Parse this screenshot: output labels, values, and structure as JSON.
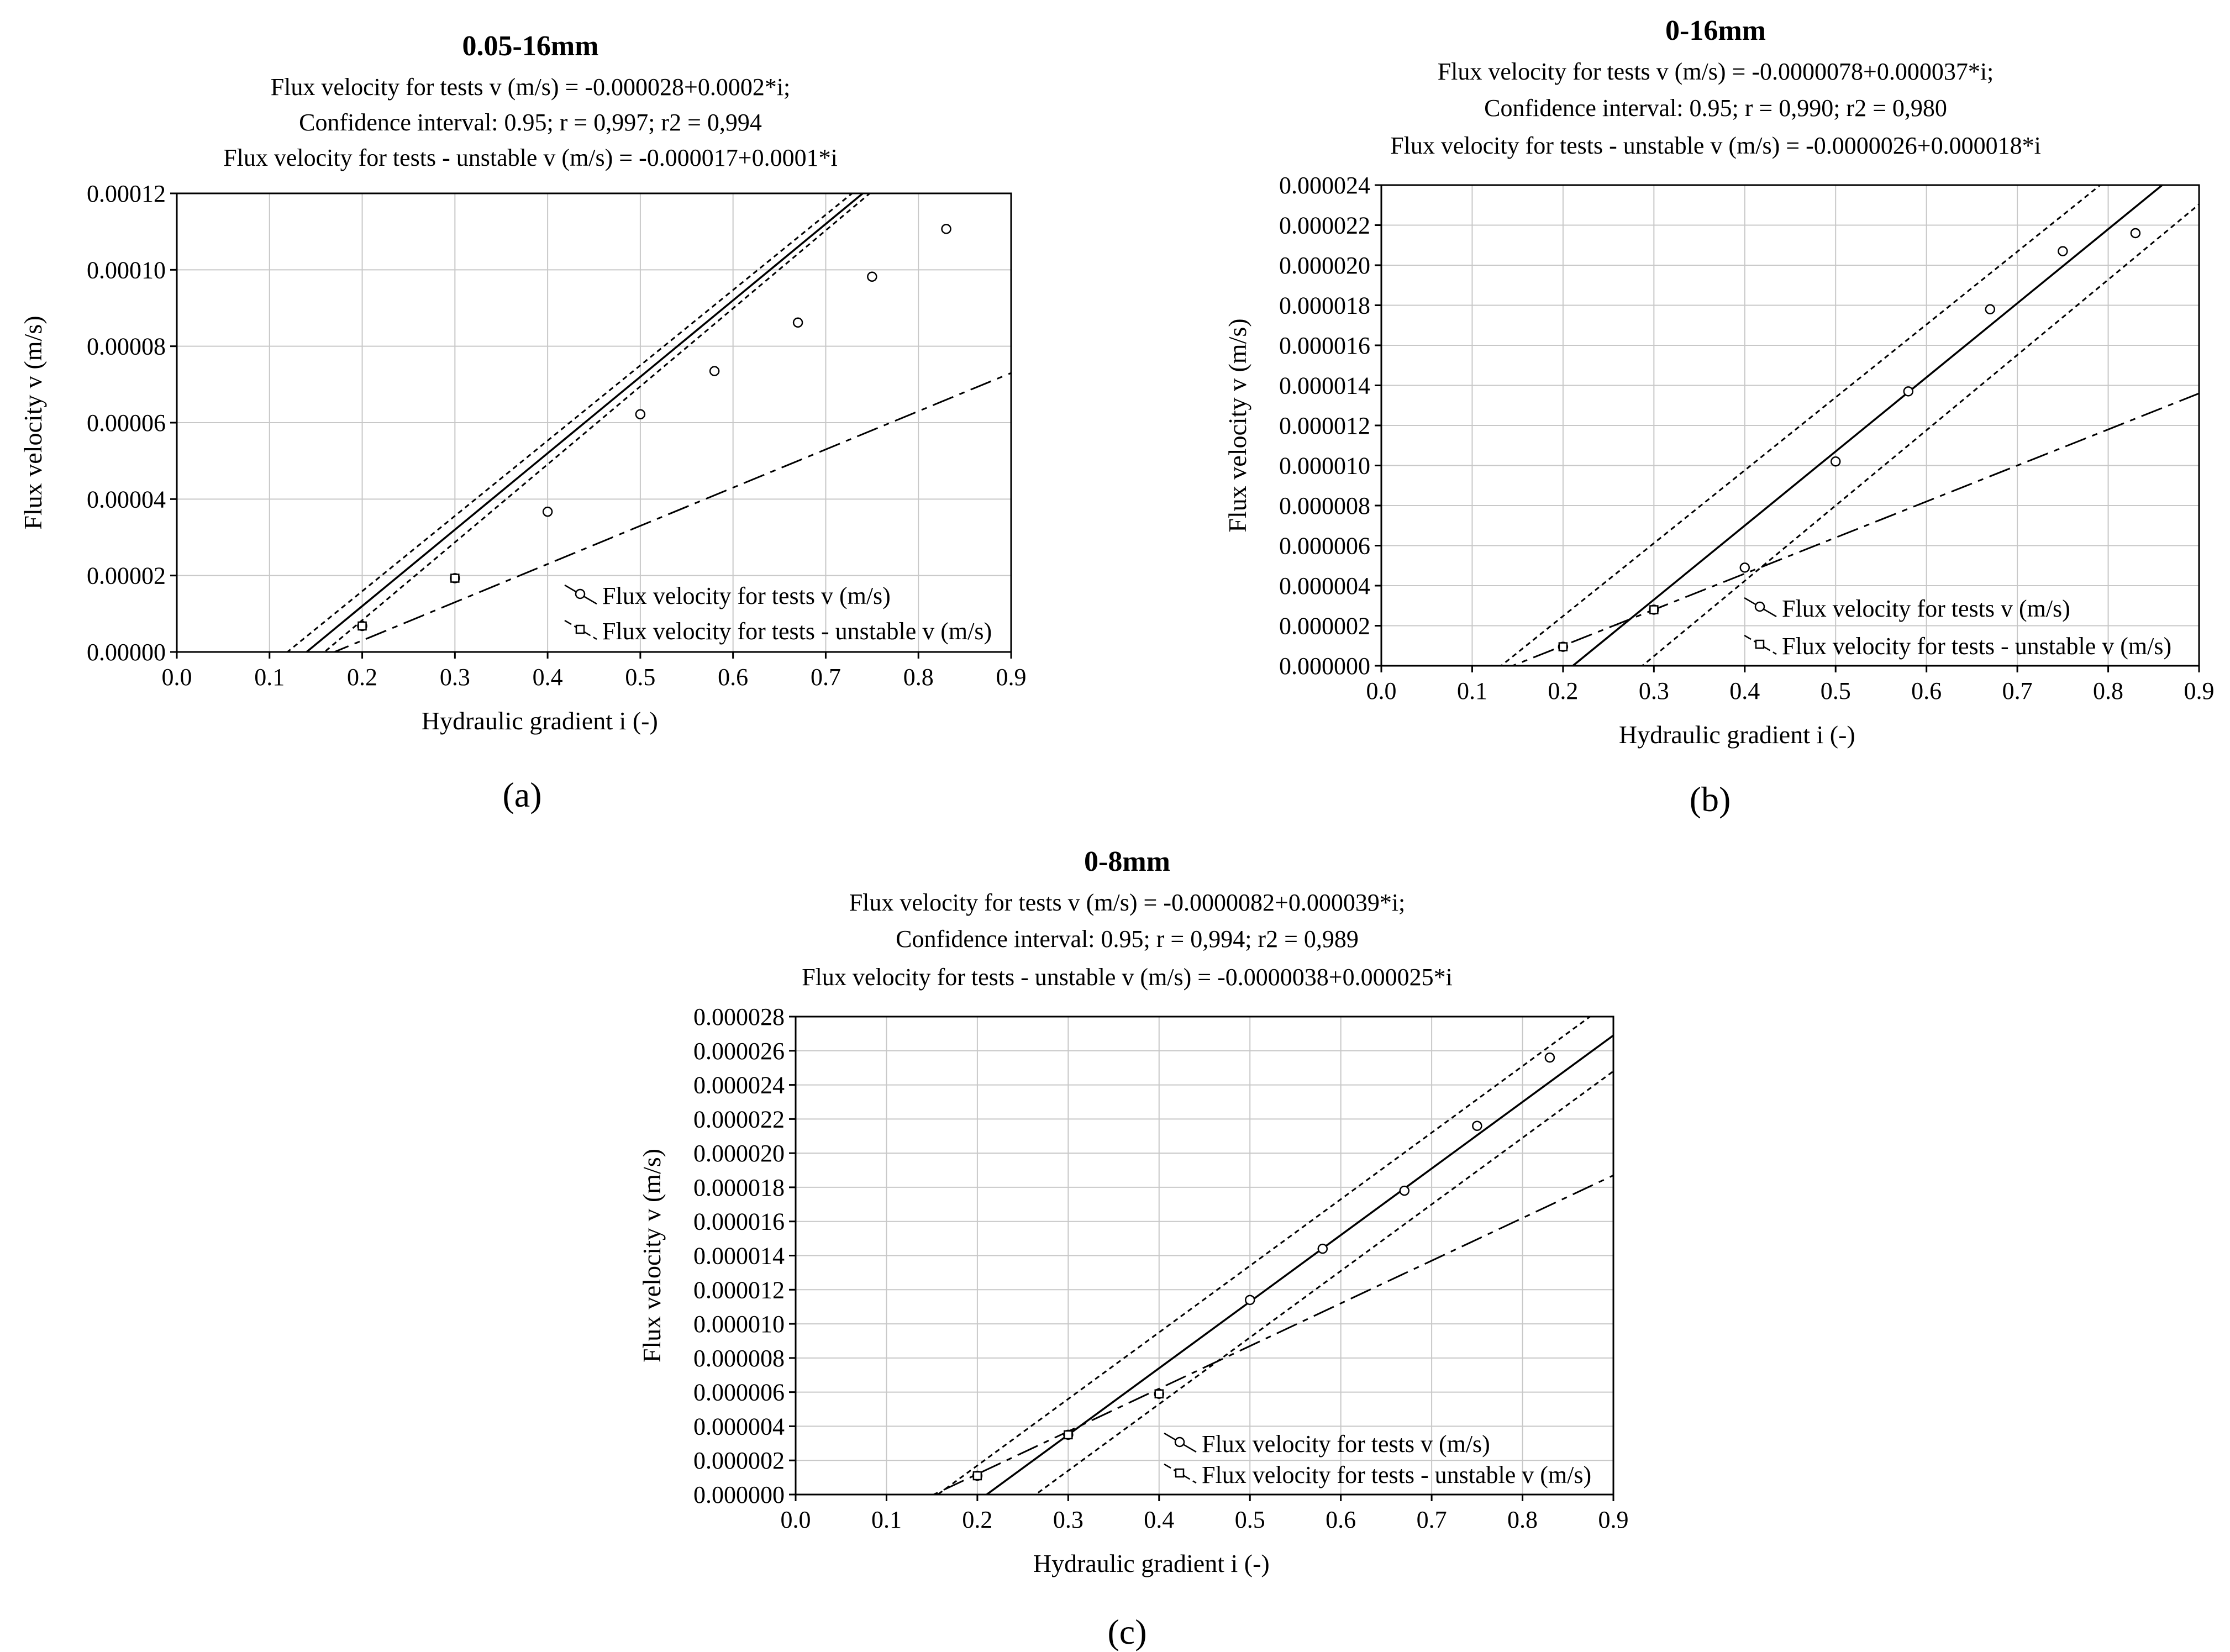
{
  "chart_data": [
    {
      "type": "scatter",
      "panel_label": "(a)",
      "title": "0.05-16mm",
      "subtitle_lines": [
        "Flux velocity for tests v (m/s) = -0.000028+0.0002*i;",
        "Confidence interval: 0.95;  r = 0,997; r2 = 0,994",
        "Flux velocity for tests - unstable v (m/s) = -0.000017+0.0001*i"
      ],
      "xlabel": "Hydraulic gradient i (-)",
      "ylabel": "Flux velocity v (m/s)",
      "xlim": [
        0,
        0.9
      ],
      "ylim": [
        0,
        0.00012
      ],
      "x_ticks": [
        0.0,
        0.1,
        0.2,
        0.3,
        0.4,
        0.5,
        0.6,
        0.7,
        0.8,
        0.9
      ],
      "x_tick_labels": [
        "0.0",
        "0.1",
        "0.2",
        "0.3",
        "0.4",
        "0.5",
        "0.6",
        "0.7",
        "0.8",
        "0.9"
      ],
      "y_ticks": [
        0,
        2e-05,
        4e-05,
        6e-05,
        8e-05,
        0.0001,
        0.00012
      ],
      "y_tick_labels": [
        "0.00000",
        "0.00002",
        "0.00004",
        "0.00006",
        "0.00008",
        "0.00010",
        "0.00012"
      ],
      "grid": true,
      "legend_position": "bottom-right",
      "series": [
        {
          "name": "Flux velocity for tests v (m/s)",
          "marker": "circle",
          "x": [
            0.2,
            0.3,
            0.4,
            0.5,
            0.58,
            0.67,
            0.75,
            0.83
          ],
          "y": [
            6.8e-06,
            1.93e-05,
            3.67e-05,
            6.22e-05,
            7.35e-05,
            8.62e-05,
            9.82e-05,
            0.0001107
          ],
          "fit": {
            "intercept": -2.8e-05,
            "slope": 0.0002,
            "style": "solid"
          },
          "ci": {
            "level": 0.95,
            "lower": {
              "intercept": -3.25e-05,
              "slope": 0.000204
            },
            "upper": {
              "intercept": -2.35e-05,
              "slope": 0.000197
            },
            "style": "dotted"
          }
        },
        {
          "name": "Flux velocity for tests - unstable v (m/s)",
          "marker": "square",
          "x": [
            0.2,
            0.3
          ],
          "y": [
            6.8e-06,
            1.93e-05
          ],
          "fit": {
            "intercept": -1.7e-05,
            "slope": 0.0001,
            "style": "dashed"
          }
        }
      ]
    },
    {
      "type": "scatter",
      "panel_label": "(b)",
      "title": "0-16mm",
      "subtitle_lines": [
        "Flux velocity for tests v (m/s) = -0.0000078+0.000037*i;",
        "Confidence interval: 0.95; r = 0,990; r2 = 0,980",
        "Flux velocity for tests - unstable v (m/s) = -0.0000026+0.000018*i"
      ],
      "xlabel": "Hydraulic gradient i (-)",
      "ylabel": "Flux velocity v (m/s)",
      "xlim": [
        0,
        0.9
      ],
      "ylim": [
        0,
        2.4e-05
      ],
      "x_ticks": [
        0.0,
        0.1,
        0.2,
        0.3,
        0.4,
        0.5,
        0.6,
        0.7,
        0.8,
        0.9
      ],
      "x_tick_labels": [
        "0.0",
        "0.1",
        "0.2",
        "0.3",
        "0.4",
        "0.5",
        "0.6",
        "0.7",
        "0.8",
        "0.9"
      ],
      "y_ticks": [
        0,
        2e-06,
        4e-06,
        6e-06,
        8e-06,
        1e-05,
        1.2e-05,
        1.4e-05,
        1.6e-05,
        1.8e-05,
        2e-05,
        2.2e-05,
        2.4e-05
      ],
      "y_tick_labels": [
        "0.000000",
        "0.000002",
        "0.000004",
        "0.000006",
        "0.000008",
        "0.000010",
        "0.000012",
        "0.000014",
        "0.000016",
        "0.000018",
        "0.000020",
        "0.000022",
        "0.000024"
      ],
      "grid": true,
      "legend_position": "bottom-right",
      "series": [
        {
          "name": "Flux velocity for tests v (m/s)",
          "marker": "circle",
          "x": [
            0.2,
            0.3,
            0.4,
            0.5,
            0.58,
            0.67,
            0.75,
            0.83
          ],
          "y": [
            9.5e-07,
            2.8e-06,
            4.9e-06,
            1.02e-05,
            1.37e-05,
            1.78e-05,
            2.07e-05,
            2.16e-05
          ],
          "fit": {
            "intercept": -7.8e-06,
            "slope": 3.7e-05,
            "style": "solid"
          },
          "ci": {
            "level": 0.95,
            "lower": {
              "intercept": -1.08e-05,
              "slope": 3.76e-05
            },
            "upper": {
              "intercept": -4.8e-06,
              "slope": 3.64e-05
            },
            "style": "dotted"
          }
        },
        {
          "name": "Flux velocity for tests - unstable v (m/s)",
          "marker": "square",
          "x": [
            0.2,
            0.3
          ],
          "y": [
            9.5e-07,
            2.8e-06
          ],
          "fit": {
            "intercept": -2.6e-06,
            "slope": 1.8e-05,
            "style": "dashed"
          }
        }
      ]
    },
    {
      "type": "scatter",
      "panel_label": "(c)",
      "title": "0-8mm",
      "subtitle_lines": [
        "Flux velocity for tests v (m/s) = -0.0000082+0.000039*i;",
        "Confidence interval: 0.95; r = 0,994; r2 = 0,989",
        "Flux velocity for tests - unstable v (m/s) = -0.0000038+0.000025*i"
      ],
      "xlabel": "Hydraulic gradient i (-)",
      "ylabel": "Flux velocity v (m/s)",
      "xlim": [
        0,
        0.9
      ],
      "ylim": [
        0,
        2.8e-05
      ],
      "x_ticks": [
        0.0,
        0.1,
        0.2,
        0.3,
        0.4,
        0.5,
        0.6,
        0.7,
        0.8,
        0.9
      ],
      "x_tick_labels": [
        "0.0",
        "0.1",
        "0.2",
        "0.3",
        "0.4",
        "0.5",
        "0.6",
        "0.7",
        "0.8",
        "0.9"
      ],
      "y_ticks": [
        0,
        2e-06,
        4e-06,
        6e-06,
        8e-06,
        1e-05,
        1.2e-05,
        1.4e-05,
        1.6e-05,
        1.8e-05,
        2e-05,
        2.2e-05,
        2.4e-05,
        2.6e-05,
        2.8e-05
      ],
      "y_tick_labels": [
        "0.000000",
        "0.000002",
        "0.000004",
        "0.000006",
        "0.000008",
        "0.000010",
        "0.000012",
        "0.000014",
        "0.000016",
        "0.000018",
        "0.000020",
        "0.000022",
        "0.000024",
        "0.000026",
        "0.000028"
      ],
      "grid": true,
      "legend_position": "bottom-right",
      "series": [
        {
          "name": "Flux velocity for tests v (m/s)",
          "marker": "circle",
          "x": [
            0.2,
            0.3,
            0.4,
            0.5,
            0.58,
            0.67,
            0.75,
            0.83
          ],
          "y": [
            1.1e-06,
            3.5e-06,
            5.9e-06,
            1.14e-05,
            1.44e-05,
            1.78e-05,
            2.16e-05,
            2.56e-05
          ],
          "fit": {
            "intercept": -8.2e-06,
            "slope": 3.9e-05,
            "style": "solid"
          },
          "ci": {
            "level": 0.95,
            "lower": {
              "intercept": -1.03e-05,
              "slope": 3.9e-05
            },
            "upper": {
              "intercept": -6.1e-06,
              "slope": 3.9e-05
            },
            "style": "dotted"
          }
        },
        {
          "name": "Flux velocity for tests - unstable v (m/s)",
          "marker": "square",
          "x": [
            0.2,
            0.3,
            0.4
          ],
          "y": [
            1.1e-06,
            3.5e-06,
            5.9e-06
          ],
          "fit": {
            "intercept": -3.8e-06,
            "slope": 2.5e-05,
            "style": "dashed"
          }
        }
      ]
    }
  ]
}
